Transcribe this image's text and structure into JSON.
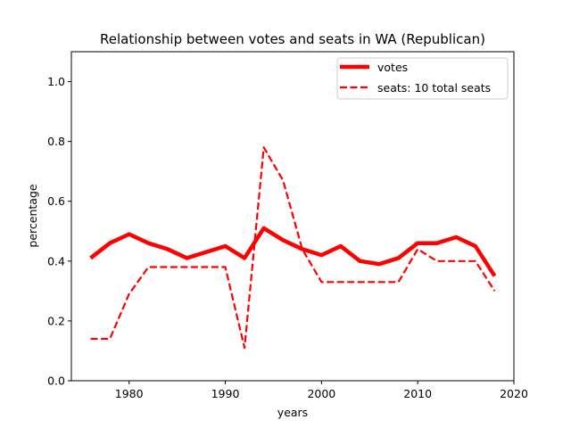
{
  "chart_data": {
    "type": "line",
    "title": "Relationship between votes and seats in WA (Republican)",
    "xlabel": "years",
    "ylabel": "percentage",
    "xlim": [
      1974,
      2020
    ],
    "ylim": [
      0.0,
      1.1
    ],
    "xticks": [
      1980,
      1990,
      2000,
      2010,
      2020
    ],
    "xtick_labels": [
      "1980",
      "1990",
      "2000",
      "2010",
      "2020"
    ],
    "yticks": [
      0.0,
      0.2,
      0.4,
      0.6,
      0.8,
      1.0
    ],
    "ytick_labels": [
      "0.0",
      "0.2",
      "0.4",
      "0.6",
      "0.8",
      "1.0"
    ],
    "grid": false,
    "legend_position": "top-right",
    "x": [
      1976,
      1978,
      1980,
      1982,
      1984,
      1986,
      1988,
      1990,
      1992,
      1994,
      1996,
      1998,
      2000,
      2002,
      2004,
      2006,
      2008,
      2010,
      2012,
      2014,
      2016,
      2018
    ],
    "series": [
      {
        "name": "votes",
        "color": "#ff0000",
        "style": "solid-thick",
        "values": [
          0.41,
          0.46,
          0.49,
          0.46,
          0.44,
          0.41,
          0.43,
          0.45,
          0.41,
          0.51,
          0.47,
          0.44,
          0.42,
          0.45,
          0.4,
          0.39,
          0.41,
          0.46,
          0.46,
          0.48,
          0.45,
          0.35
        ]
      },
      {
        "name": "seats: 10 total seats",
        "color": "#ff0000",
        "style": "dashed",
        "values": [
          0.14,
          0.14,
          0.29,
          0.38,
          0.38,
          0.38,
          0.38,
          0.38,
          0.11,
          0.78,
          0.67,
          0.44,
          0.33,
          0.33,
          0.33,
          0.33,
          0.33,
          0.44,
          0.4,
          0.4,
          0.4,
          0.3
        ]
      }
    ]
  }
}
